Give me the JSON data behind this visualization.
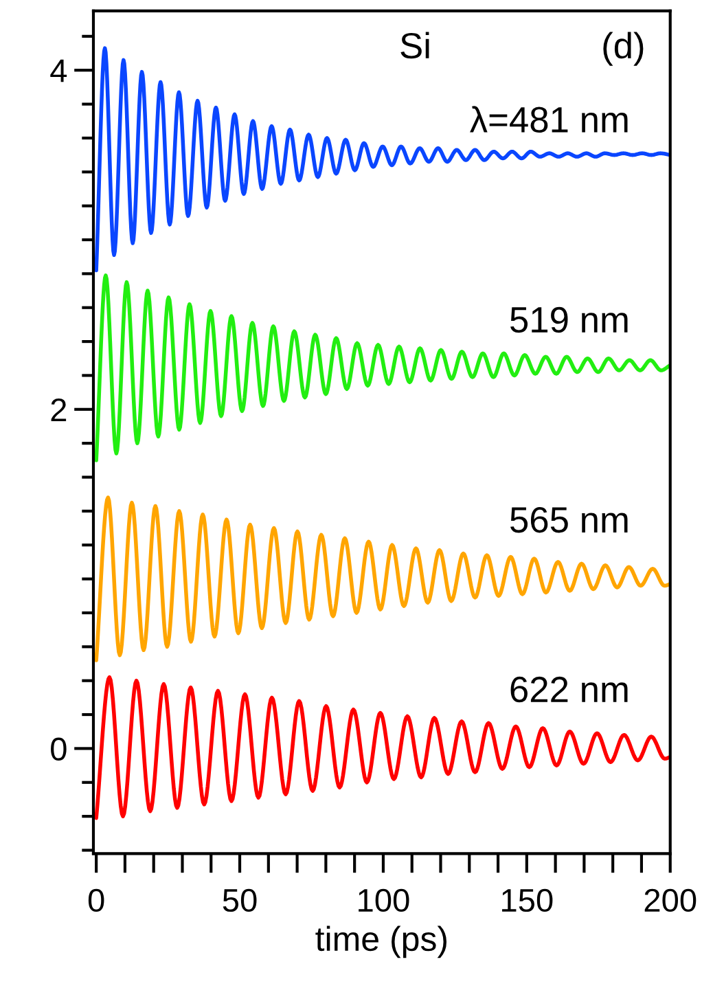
{
  "chart_data": {
    "type": "line",
    "xlabel": "time (ps)",
    "annotations": [
      "Si",
      "(d)"
    ],
    "xlim": [
      -1,
      200
    ],
    "ylim": [
      -0.62,
      4.35
    ],
    "xticks": [
      0,
      {
        "value": 10,
        "label": null
      },
      {
        "value": 20,
        "label": null
      },
      {
        "value": 30,
        "label": null
      },
      {
        "value": 40,
        "label": null
      },
      50,
      {
        "value": 60,
        "label": null
      },
      {
        "value": 70,
        "label": null
      },
      {
        "value": 80,
        "label": null
      },
      {
        "value": 90,
        "label": null
      },
      100,
      {
        "value": 110,
        "label": null
      },
      {
        "value": 120,
        "label": null
      },
      {
        "value": 130,
        "label": null
      },
      {
        "value": 140,
        "label": null
      },
      150,
      {
        "value": 160,
        "label": null
      },
      {
        "value": 170,
        "label": null
      },
      {
        "value": 180,
        "label": null
      },
      {
        "value": 190,
        "label": null
      },
      200
    ],
    "yticks": [
      {
        "value": -0.6,
        "label": null
      },
      {
        "value": -0.4,
        "label": null
      },
      {
        "value": -0.2,
        "label": null
      },
      0,
      {
        "value": 0.2,
        "label": null
      },
      {
        "value": 0.4,
        "label": null
      },
      {
        "value": 0.6,
        "label": null
      },
      {
        "value": 0.8,
        "label": null
      },
      {
        "value": 1.0,
        "label": null
      },
      {
        "value": 1.2,
        "label": null
      },
      {
        "value": 1.4,
        "label": null
      },
      {
        "value": 1.6,
        "label": null
      },
      {
        "value": 1.8,
        "label": null
      },
      2,
      {
        "value": 2.2,
        "label": null
      },
      {
        "value": 2.4,
        "label": null
      },
      {
        "value": 2.6,
        "label": null
      },
      {
        "value": 2.8,
        "label": null
      },
      {
        "value": 3.0,
        "label": null
      },
      {
        "value": 3.2,
        "label": null
      },
      {
        "value": 3.4,
        "label": null
      },
      {
        "value": 3.6,
        "label": null
      },
      {
        "value": 3.8,
        "label": null
      },
      4,
      {
        "value": 4.2,
        "label": null
      }
    ],
    "grid": false,
    "legend": false,
    "series": [
      {
        "name": "λ=481 nm",
        "color": "#0a46ff",
        "x": [
          0,
          3.0,
          6.2,
          9.5,
          12.7,
          15.9,
          19.1,
          22.4,
          25.6,
          28.8,
          32.0,
          35.3,
          38.5,
          41.7,
          44.9,
          48.2,
          51.4,
          54.6,
          57.8,
          61.1,
          64.3,
          67.5,
          70.7,
          74.0,
          77.2,
          80.4,
          83.6,
          86.9,
          90.1,
          93.3,
          96.5,
          99.8,
          103.0,
          106.2,
          109.4,
          112.7,
          115.9,
          119.1,
          122.3,
          125.6,
          128.8,
          132.0,
          135.2,
          138.5,
          141.7,
          144.9,
          148.2,
          151.4,
          154.6,
          157.9,
          161.1,
          164.3,
          167.5,
          170.8,
          174.0,
          177.2,
          180.5,
          183.7,
          186.9,
          190.2,
          193.4,
          196.6,
          200
        ],
        "values": [
          2.82,
          4.13,
          2.91,
          4.06,
          2.98,
          3.99,
          3.04,
          3.93,
          3.09,
          3.87,
          3.14,
          3.82,
          3.19,
          3.78,
          3.23,
          3.74,
          3.27,
          3.7,
          3.3,
          3.67,
          3.33,
          3.65,
          3.35,
          3.62,
          3.37,
          3.6,
          3.39,
          3.59,
          3.41,
          3.57,
          3.43,
          3.55,
          3.44,
          3.55,
          3.45,
          3.54,
          3.46,
          3.54,
          3.46,
          3.53,
          3.47,
          3.53,
          3.47,
          3.52,
          3.48,
          3.52,
          3.48,
          3.52,
          3.49,
          3.51,
          3.49,
          3.51,
          3.49,
          3.51,
          3.49,
          3.51,
          3.5,
          3.51,
          3.5,
          3.51,
          3.5,
          3.51,
          3.5
        ]
      },
      {
        "name": "519 nm",
        "color": "#22ee11",
        "x": [
          0,
          3.3,
          7.0,
          10.6,
          14.3,
          17.9,
          21.6,
          25.2,
          28.9,
          32.5,
          36.2,
          39.8,
          43.5,
          47.1,
          50.8,
          54.4,
          58.1,
          61.7,
          65.4,
          69.0,
          72.7,
          76.3,
          80.0,
          83.6,
          87.3,
          90.9,
          94.6,
          98.2,
          101.9,
          105.5,
          109.2,
          112.8,
          116.5,
          120.1,
          123.8,
          127.4,
          131.1,
          134.7,
          138.4,
          142.0,
          145.7,
          149.3,
          153.0,
          156.6,
          160.3,
          163.9,
          167.6,
          171.2,
          174.9,
          178.5,
          182.2,
          185.8,
          189.5,
          193.1,
          196.8,
          200
        ],
        "values": [
          1.7,
          2.79,
          1.74,
          2.75,
          1.8,
          2.7,
          1.84,
          2.66,
          1.88,
          2.62,
          1.92,
          2.58,
          1.96,
          2.55,
          1.99,
          2.51,
          2.02,
          2.49,
          2.05,
          2.46,
          2.07,
          2.44,
          2.09,
          2.42,
          2.12,
          2.39,
          2.14,
          2.38,
          2.15,
          2.37,
          2.16,
          2.36,
          2.17,
          2.35,
          2.18,
          2.34,
          2.19,
          2.33,
          2.19,
          2.33,
          2.2,
          2.32,
          2.21,
          2.31,
          2.21,
          2.31,
          2.22,
          2.3,
          2.22,
          2.3,
          2.23,
          2.29,
          2.23,
          2.29,
          2.23,
          2.26
        ]
      },
      {
        "name": "565 nm",
        "color": "#ffa500",
        "x": [
          0,
          4.1,
          8.2,
          12.4,
          16.5,
          20.6,
          24.7,
          28.9,
          33.0,
          37.1,
          41.2,
          45.4,
          49.5,
          53.6,
          57.7,
          61.9,
          66.0,
          70.1,
          74.2,
          78.4,
          82.5,
          86.6,
          90.7,
          94.9,
          99.0,
          103.1,
          107.2,
          111.4,
          115.5,
          119.6,
          123.7,
          127.9,
          132.0,
          136.1,
          140.2,
          144.4,
          148.5,
          152.6,
          156.7,
          160.9,
          165.0,
          169.1,
          173.2,
          177.4,
          181.5,
          185.6,
          189.7,
          193.9,
          198.0,
          200
        ],
        "values": [
          0.52,
          1.48,
          0.55,
          1.45,
          0.58,
          1.43,
          0.6,
          1.4,
          0.63,
          1.38,
          0.66,
          1.35,
          0.68,
          1.32,
          0.71,
          1.3,
          0.74,
          1.28,
          0.76,
          1.26,
          0.78,
          1.24,
          0.8,
          1.22,
          0.82,
          1.2,
          0.84,
          1.18,
          0.86,
          1.17,
          0.87,
          1.15,
          0.89,
          1.14,
          0.9,
          1.13,
          0.91,
          1.12,
          0.92,
          1.1,
          0.93,
          1.09,
          0.94,
          1.08,
          0.95,
          1.07,
          0.96,
          1.06,
          0.96,
          0.97
        ]
      },
      {
        "name": "622 nm",
        "color": "#ff0000",
        "x": [
          0,
          4.6,
          9.3,
          14.0,
          18.8,
          23.5,
          28.2,
          32.9,
          37.6,
          42.4,
          47.1,
          51.8,
          56.5,
          61.2,
          66.0,
          70.7,
          75.4,
          80.1,
          84.8,
          89.6,
          94.3,
          99.0,
          103.7,
          108.4,
          113.2,
          117.8,
          122.6,
          127.3,
          132.0,
          136.7,
          141.5,
          146.2,
          150.9,
          155.6,
          160.4,
          165.0,
          169.8,
          174.5,
          179.2,
          183.9,
          188.7,
          193.4,
          198.1,
          200
        ],
        "values": [
          -0.41,
          0.42,
          -0.4,
          0.4,
          -0.37,
          0.38,
          -0.35,
          0.36,
          -0.33,
          0.34,
          -0.31,
          0.32,
          -0.29,
          0.3,
          -0.27,
          0.28,
          -0.25,
          0.25,
          -0.23,
          0.23,
          -0.2,
          0.21,
          -0.18,
          0.19,
          -0.17,
          0.18,
          -0.15,
          0.16,
          -0.14,
          0.15,
          -0.12,
          0.13,
          -0.11,
          0.12,
          -0.1,
          0.1,
          -0.09,
          0.09,
          -0.08,
          0.08,
          -0.07,
          0.07,
          -0.06,
          -0.05
        ]
      }
    ]
  }
}
